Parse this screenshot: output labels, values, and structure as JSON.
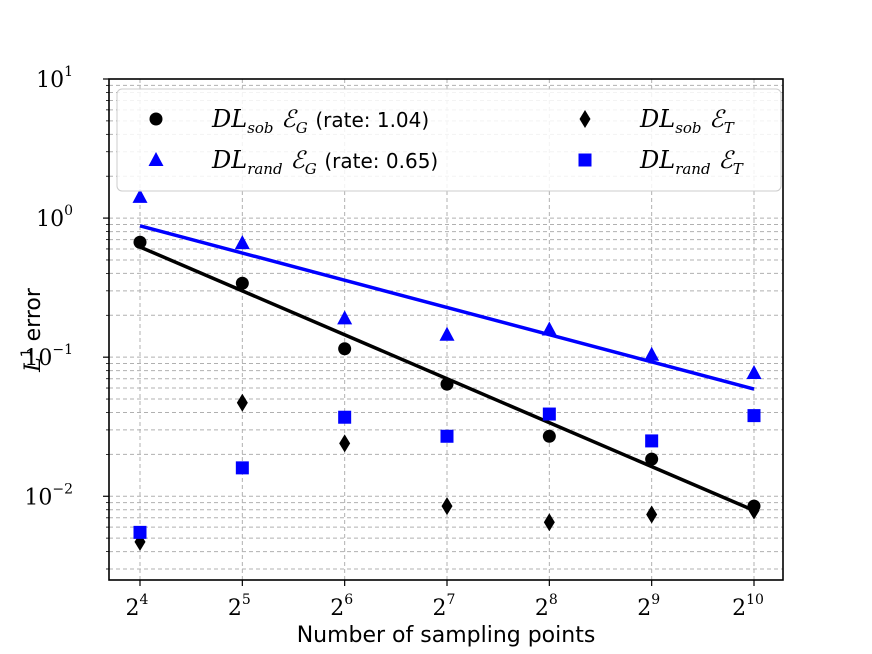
{
  "chart_data": {
    "type": "scatter",
    "xscale": "log2",
    "yscale": "log10",
    "x_exponents": [
      4,
      5,
      6,
      7,
      8,
      9,
      10
    ],
    "xlabel": "Number of sampling points",
    "ylabel_main": "L",
    "ylabel_sup": "1",
    "ylabel_rest": "error",
    "ylim": [
      0.0025,
      10
    ],
    "yticks": [
      {
        "base": "10",
        "exp": "1",
        "value": 10
      },
      {
        "base": "10",
        "exp": "0",
        "value": 1
      },
      {
        "base": "10",
        "exp": "−1",
        "value": 0.1
      },
      {
        "base": "10",
        "exp": "−2",
        "value": 0.01
      }
    ],
    "xticks": [
      {
        "base": "2",
        "exp": "4"
      },
      {
        "base": "2",
        "exp": "5"
      },
      {
        "base": "2",
        "exp": "6"
      },
      {
        "base": "2",
        "exp": "7"
      },
      {
        "base": "2",
        "exp": "8"
      },
      {
        "base": "2",
        "exp": "9"
      },
      {
        "base": "2",
        "exp": "10"
      }
    ],
    "grid": true,
    "legend_position": "top",
    "series": [
      {
        "key": "sobG",
        "label_base": "DL",
        "label_sub": "sob",
        "label_err": "ℰ",
        "label_errsub": "G",
        "label_rate": "(rate: 1.04)",
        "marker": "circle",
        "color": "#000000",
        "values": [
          0.67,
          0.34,
          0.115,
          0.064,
          0.027,
          0.0185,
          0.0085
        ]
      },
      {
        "key": "randG",
        "label_base": "DL",
        "label_sub": "rand",
        "label_err": "ℰ",
        "label_errsub": "G",
        "label_rate": "(rate: 0.65)",
        "marker": "triangle",
        "color": "#0000ff",
        "values": [
          1.42,
          0.66,
          0.19,
          0.145,
          0.158,
          0.104,
          0.077
        ]
      },
      {
        "key": "sobT",
        "label_base": "DL",
        "label_sub": "sob",
        "label_err": "ℰ",
        "label_errsub": "T",
        "label_rate": "",
        "marker": "diamond",
        "color": "#000000",
        "values": [
          0.0047,
          0.047,
          0.024,
          0.0085,
          0.0065,
          0.0074,
          0.0079
        ]
      },
      {
        "key": "randT",
        "label_base": "DL",
        "label_sub": "rand",
        "label_err": "ℰ",
        "label_errsub": "T",
        "label_rate": "",
        "marker": "square",
        "color": "#0000ff",
        "values": [
          0.0055,
          0.016,
          0.037,
          0.027,
          0.039,
          0.025,
          0.038
        ]
      }
    ],
    "fit_lines": [
      {
        "series": "sobG",
        "color": "#000000",
        "rate": 1.04,
        "y_start": 0.62,
        "y_end": 0.0079
      },
      {
        "series": "randG",
        "color": "#0000ff",
        "rate": 0.65,
        "y_start": 0.88,
        "y_end": 0.059
      }
    ]
  }
}
